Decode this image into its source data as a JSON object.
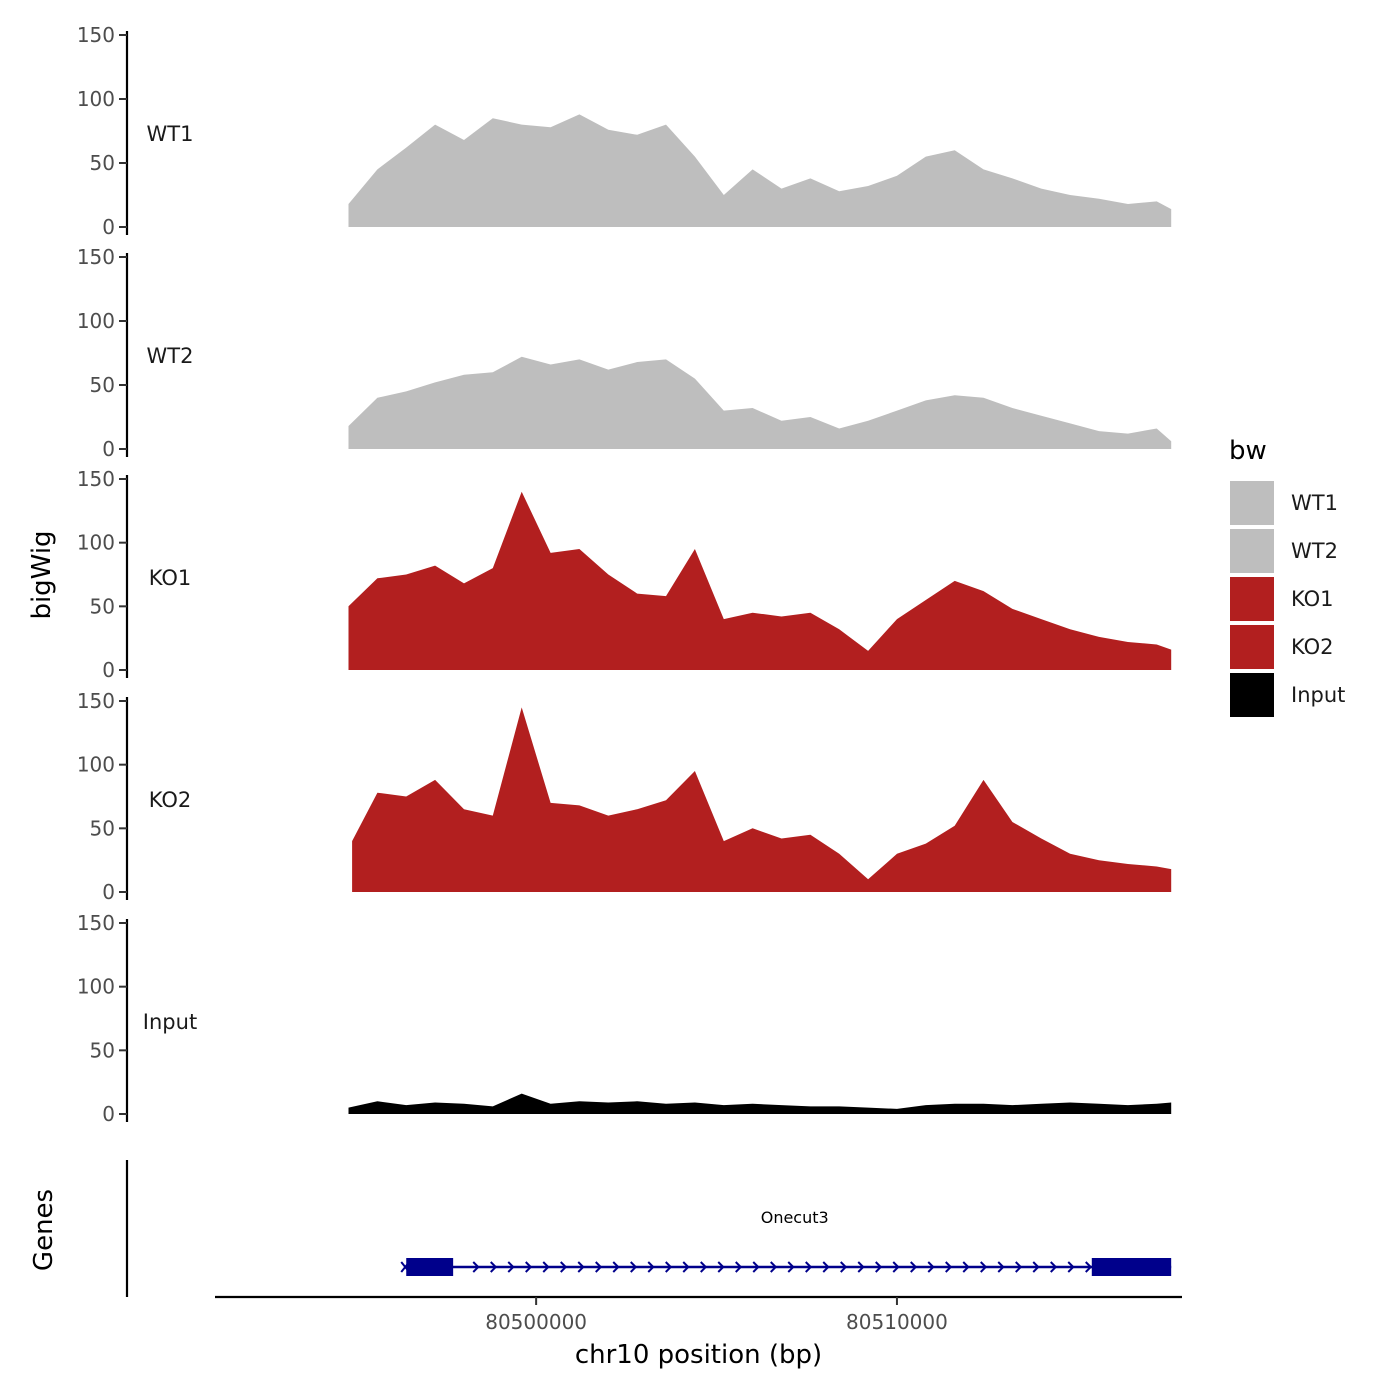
{
  "chart_data": {
    "type": "area",
    "chromosome": "chr10",
    "xlabel": "chr10 position (bp)",
    "ylabel_tracks": "bigWig",
    "ylabel_genes": "Genes",
    "xlim": [
      80491100,
      80517900
    ],
    "x_ticks": [
      80500000,
      80510000
    ],
    "x_tick_labels": [
      "80500000",
      "80510000"
    ],
    "ylim": [
      0,
      150
    ],
    "y_ticks": [
      0,
      50,
      100,
      150
    ],
    "y_tick_labels": [
      "0",
      "50",
      "100",
      "150"
    ],
    "series": [
      {
        "name": "WT1",
        "color": "#bebebe",
        "x": [
          80494800,
          80495600,
          80496400,
          80497200,
          80498000,
          80498800,
          80499600,
          80500400,
          80501200,
          80502000,
          80502800,
          80503600,
          80504400,
          80505200,
          80506000,
          80506800,
          80507600,
          80508400,
          80509200,
          80510000,
          80510800,
          80511600,
          80512400,
          80513200,
          80514000,
          80514800,
          80515600,
          80516400,
          80517200,
          80517600
        ],
        "values": [
          18,
          45,
          62,
          80,
          68,
          85,
          80,
          78,
          88,
          76,
          72,
          80,
          55,
          25,
          45,
          30,
          38,
          28,
          32,
          40,
          55,
          60,
          45,
          38,
          30,
          25,
          22,
          18,
          20,
          14
        ]
      },
      {
        "name": "WT2",
        "color": "#bebebe",
        "x": [
          80494800,
          80495600,
          80496400,
          80497200,
          80498000,
          80498800,
          80499600,
          80500400,
          80501200,
          80502000,
          80502800,
          80503600,
          80504400,
          80505200,
          80506000,
          80506800,
          80507600,
          80508400,
          80509200,
          80510000,
          80510800,
          80511600,
          80512400,
          80513200,
          80514000,
          80514800,
          80515600,
          80516400,
          80517200,
          80517600
        ],
        "values": [
          18,
          40,
          45,
          52,
          58,
          60,
          72,
          66,
          70,
          62,
          68,
          70,
          55,
          30,
          32,
          22,
          25,
          16,
          22,
          30,
          38,
          42,
          40,
          32,
          26,
          20,
          14,
          12,
          16,
          6
        ]
      },
      {
        "name": "KO1",
        "color": "#b21f1f",
        "x": [
          80494800,
          80495600,
          80496400,
          80497200,
          80498000,
          80498800,
          80499600,
          80500400,
          80501200,
          80502000,
          80502800,
          80503600,
          80504400,
          80505200,
          80506000,
          80506800,
          80507600,
          80508400,
          80509200,
          80510000,
          80510800,
          80511600,
          80512400,
          80513200,
          80514000,
          80514800,
          80515600,
          80516400,
          80517200,
          80517600
        ],
        "values": [
          50,
          72,
          75,
          82,
          68,
          80,
          140,
          92,
          95,
          75,
          60,
          58,
          95,
          40,
          45,
          42,
          45,
          32,
          15,
          40,
          55,
          70,
          62,
          48,
          40,
          32,
          26,
          22,
          20,
          16
        ]
      },
      {
        "name": "KO2",
        "color": "#b21f1f",
        "x": [
          80494900,
          80495600,
          80496400,
          80497200,
          80498000,
          80498800,
          80499600,
          80500400,
          80501200,
          80502000,
          80502800,
          80503600,
          80504400,
          80505200,
          80506000,
          80506800,
          80507600,
          80508400,
          80509200,
          80510000,
          80510800,
          80511600,
          80512400,
          80513200,
          80514000,
          80514800,
          80515600,
          80516400,
          80517200,
          80517600
        ],
        "values": [
          40,
          78,
          75,
          88,
          65,
          60,
          145,
          70,
          68,
          60,
          65,
          72,
          95,
          40,
          50,
          42,
          45,
          30,
          10,
          30,
          38,
          52,
          88,
          55,
          42,
          30,
          25,
          22,
          20,
          18
        ]
      },
      {
        "name": "Input",
        "color": "#000000",
        "x": [
          80494800,
          80495600,
          80496400,
          80497200,
          80498000,
          80498800,
          80499600,
          80500400,
          80501200,
          80502000,
          80502800,
          80503600,
          80504400,
          80505200,
          80506000,
          80506800,
          80507600,
          80508400,
          80509200,
          80510000,
          80510800,
          80511600,
          80512400,
          80513200,
          80514000,
          80514800,
          80515600,
          80516400,
          80517200,
          80517600
        ],
        "values": [
          5,
          10,
          7,
          9,
          8,
          6,
          16,
          8,
          10,
          9,
          10,
          8,
          9,
          7,
          8,
          7,
          6,
          6,
          5,
          4,
          7,
          8,
          8,
          7,
          8,
          9,
          8,
          7,
          8,
          9
        ]
      }
    ],
    "legend": {
      "title": "bw",
      "position": "right",
      "entries": [
        {
          "label": "WT1",
          "color": "#bebebe"
        },
        {
          "label": "WT2",
          "color": "#bebebe"
        },
        {
          "label": "KO1",
          "color": "#b21f1f"
        },
        {
          "label": "KO2",
          "color": "#b21f1f"
        },
        {
          "label": "Input",
          "color": "#000000"
        }
      ]
    },
    "genes": [
      {
        "name": "Onecut3",
        "color": "#00008b",
        "strand": "+",
        "start": 80496400,
        "end": 80517600,
        "exons": [
          [
            80496400,
            80497700
          ],
          [
            80515400,
            80517600
          ]
        ]
      }
    ],
    "grid": false
  }
}
